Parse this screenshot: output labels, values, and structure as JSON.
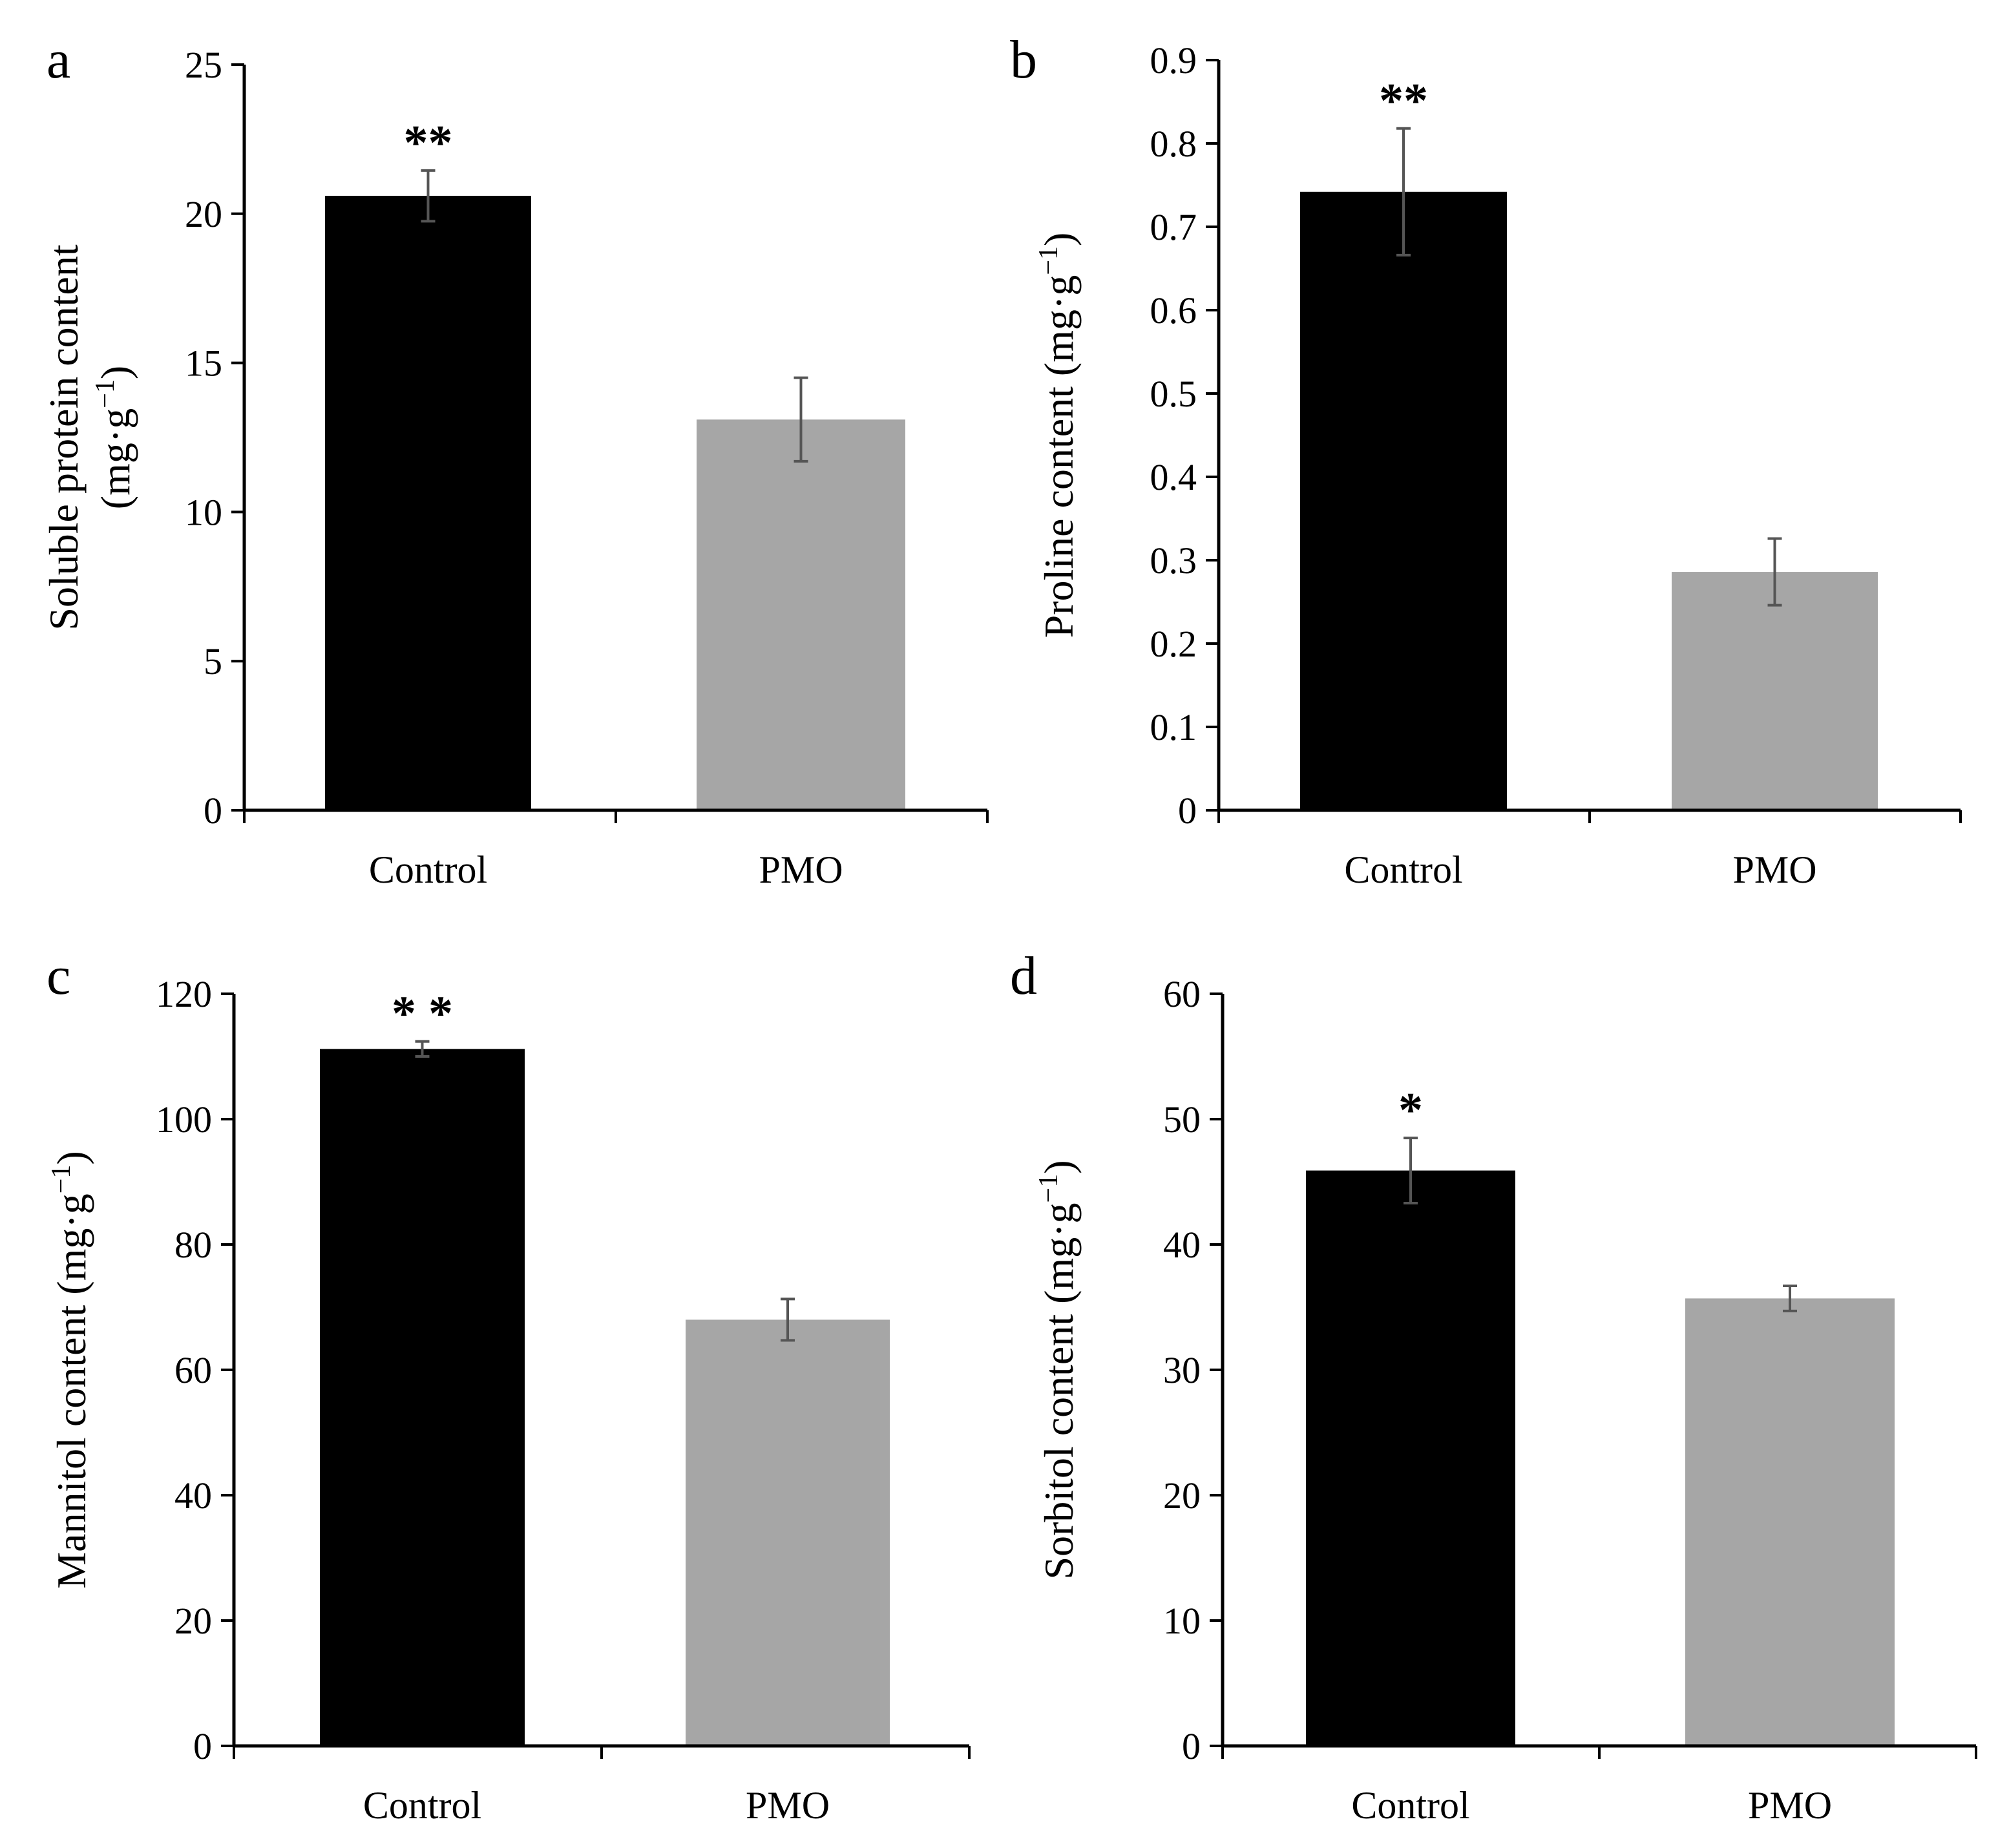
{
  "chart_data": [
    {
      "panel": "a",
      "type": "bar",
      "categories": [
        "Control",
        "PMO"
      ],
      "values": [
        20.6,
        13.1
      ],
      "errors": [
        0.85,
        1.4
      ],
      "significance": [
        "**",
        ""
      ],
      "colors": [
        "#000000",
        "#a6a6a6"
      ],
      "ylabel_line1": "Soluble  protein content",
      "ylabel_line2_prefix": "(mg·g",
      "ylabel_sup": "−1",
      "ylabel_line2_suffix": ")",
      "ylim": [
        0,
        25
      ],
      "yticks": [
        0,
        5,
        10,
        15,
        20,
        25
      ],
      "ytick_labels": [
        "0",
        "5",
        "10",
        "15",
        "20",
        "25"
      ]
    },
    {
      "panel": "b",
      "type": "bar",
      "categories": [
        "Control",
        "PMO"
      ],
      "values": [
        0.742,
        0.286
      ],
      "errors": [
        0.076,
        0.04
      ],
      "significance": [
        "**",
        ""
      ],
      "colors": [
        "#000000",
        "#a6a6a6"
      ],
      "ylabel_prefix": "Proline content (mg·g",
      "ylabel_sup": "−1",
      "ylabel_suffix": ")",
      "ylim": [
        0,
        0.9
      ],
      "yticks": [
        0,
        0.1,
        0.2,
        0.3,
        0.4,
        0.5,
        0.6,
        0.7,
        0.8,
        0.9
      ],
      "ytick_labels": [
        "0",
        "0.1",
        "0.2",
        "0.3",
        "0.4",
        "0.5",
        "0.6",
        "0.7",
        "0.8",
        "0.9"
      ]
    },
    {
      "panel": "c",
      "type": "bar",
      "categories": [
        "Control",
        "PMO"
      ],
      "values": [
        111.2,
        68.0
      ],
      "errors": [
        1.2,
        3.3
      ],
      "significance": [
        "* *",
        ""
      ],
      "colors": [
        "#000000",
        "#a6a6a6"
      ],
      "ylabel_prefix": "Mannitol content (mg·g",
      "ylabel_sup": "−1",
      "ylabel_suffix": ")",
      "ylim": [
        0,
        120
      ],
      "yticks": [
        0,
        20,
        40,
        60,
        80,
        100,
        120
      ],
      "ytick_labels": [
        "0",
        "20",
        "40",
        "60",
        "80",
        "100",
        "120"
      ]
    },
    {
      "panel": "d",
      "type": "bar",
      "categories": [
        "Control",
        "PMO"
      ],
      "values": [
        45.9,
        35.7
      ],
      "errors": [
        2.6,
        1.0
      ],
      "significance": [
        "*",
        ""
      ],
      "colors": [
        "#000000",
        "#a6a6a6"
      ],
      "ylabel_prefix": "Sorbitol content (mg·g",
      "ylabel_sup": "−1",
      "ylabel_suffix": ")",
      "ylim": [
        0,
        60
      ],
      "yticks": [
        0,
        10,
        20,
        30,
        40,
        50,
        60
      ],
      "ytick_labels": [
        "0",
        "10",
        "20",
        "30",
        "40",
        "50",
        "60"
      ]
    }
  ]
}
